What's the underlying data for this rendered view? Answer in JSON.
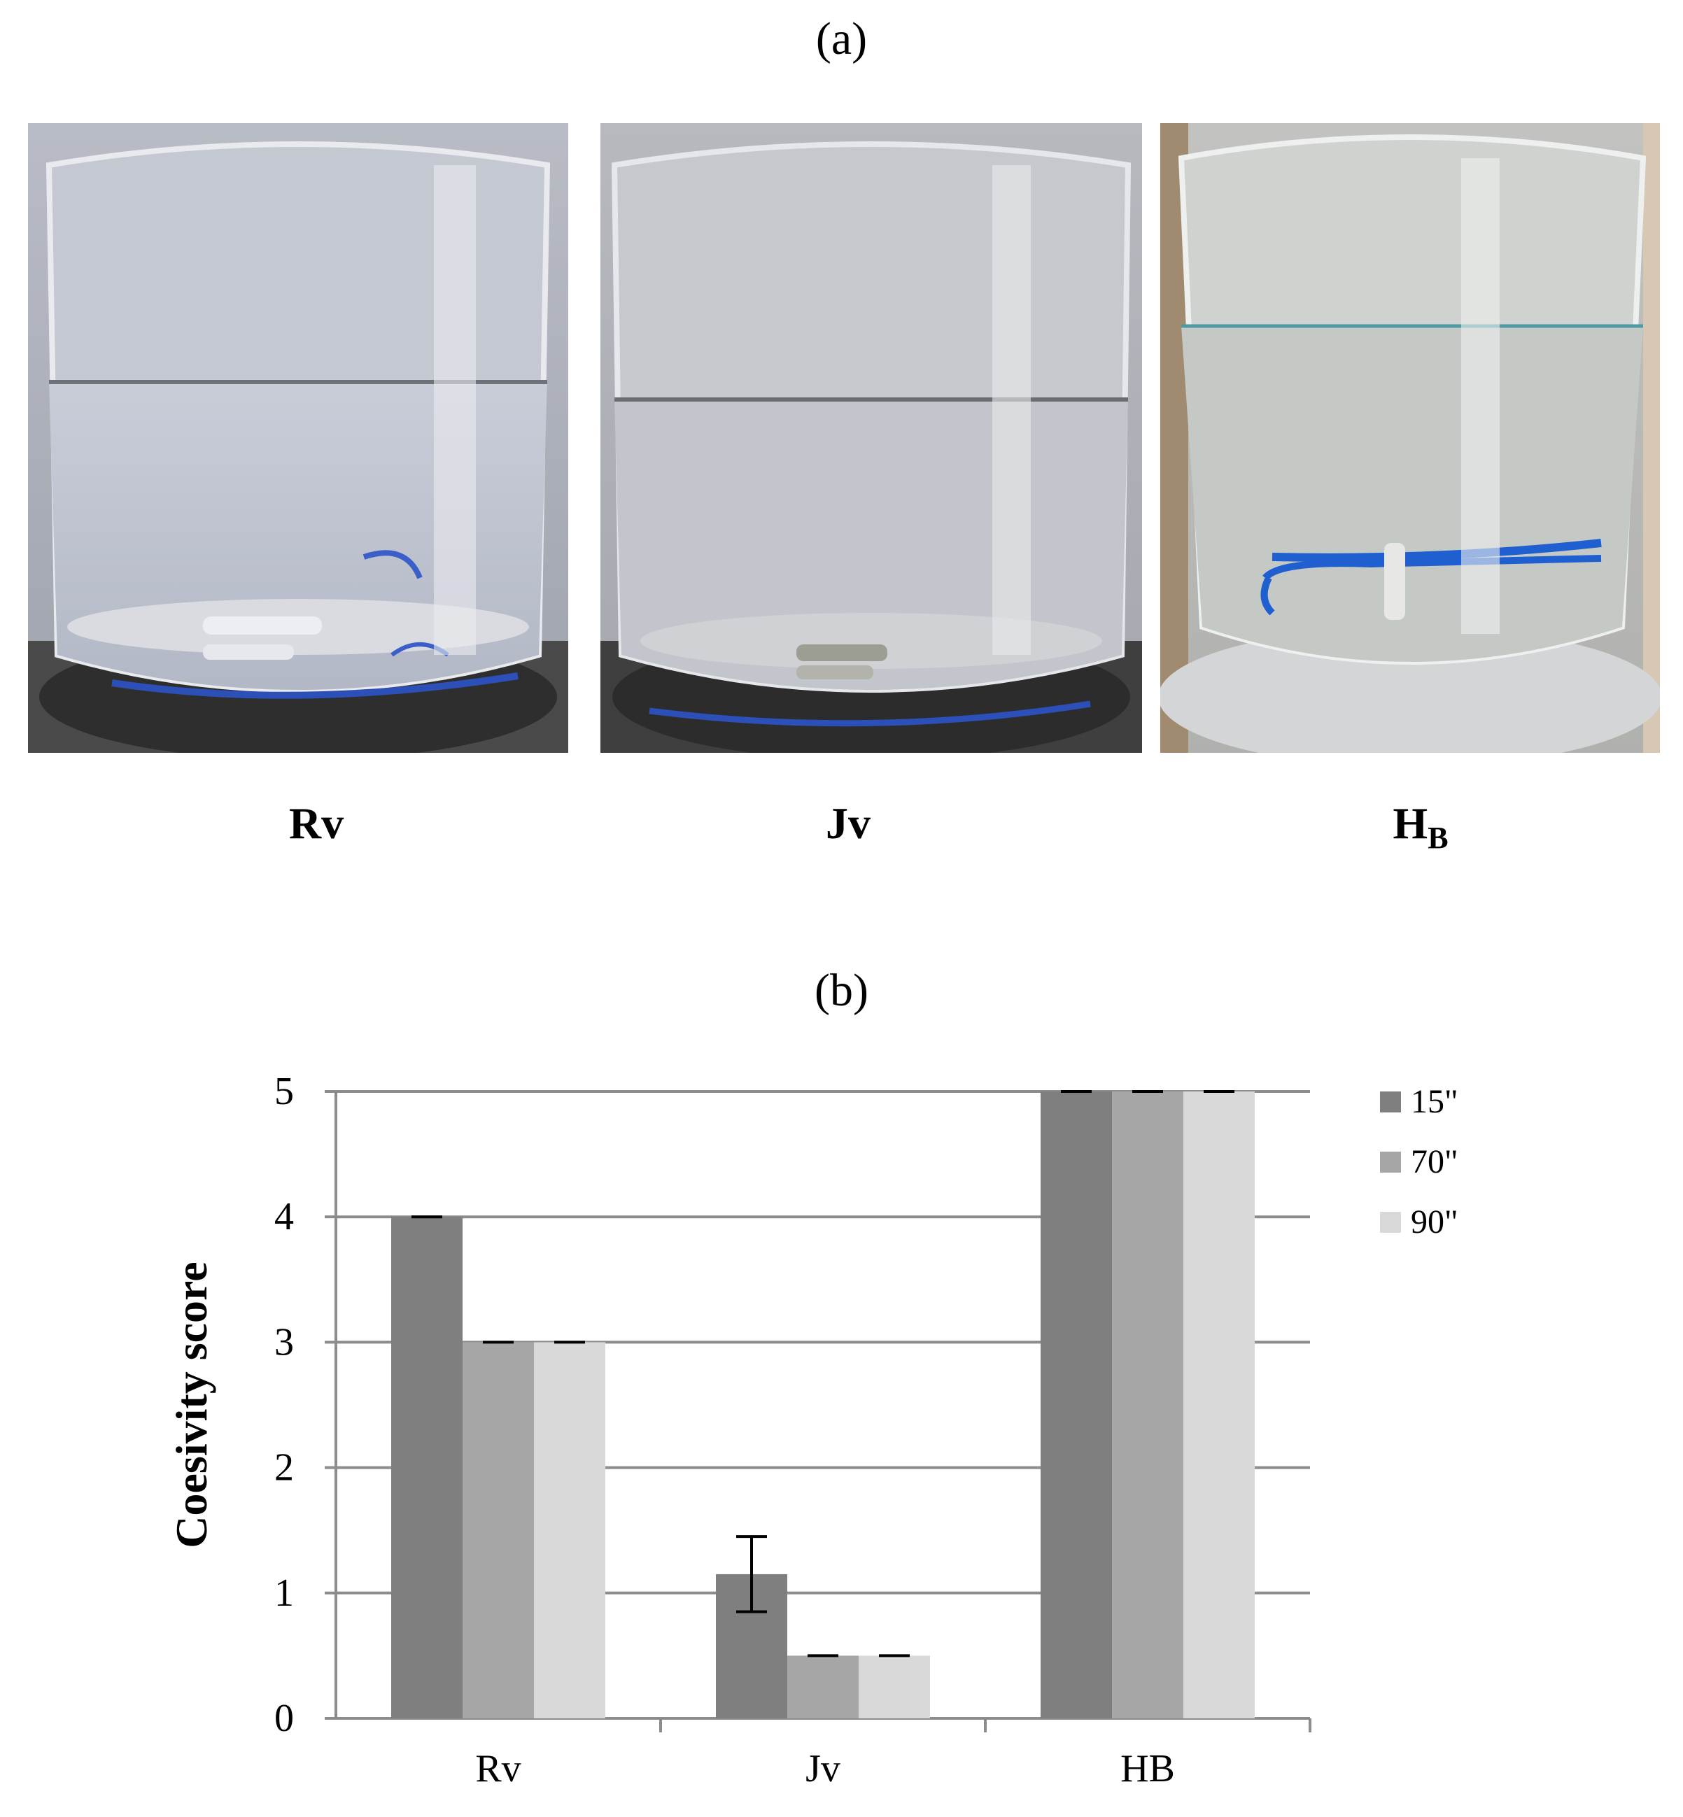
{
  "panels": {
    "a": "(a)",
    "b": "(b)"
  },
  "photos": [
    {
      "label_main": "Rv",
      "label_sub": ""
    },
    {
      "label_main": "Jv",
      "label_sub": ""
    },
    {
      "label_main": "H",
      "label_sub": "B"
    }
  ],
  "chart_data": {
    "type": "bar",
    "categories": [
      "Rv",
      "Jv",
      "HB"
    ],
    "series": [
      {
        "name": "15\"",
        "values": [
          4,
          1.15,
          5
        ],
        "errors": [
          0,
          0.3,
          0
        ],
        "color": "#7f7f7f"
      },
      {
        "name": "70\"",
        "values": [
          3,
          0.5,
          5
        ],
        "errors": [
          0,
          0,
          0
        ],
        "color": "#a6a6a6"
      },
      {
        "name": "90\"",
        "values": [
          3,
          0.5,
          5
        ],
        "errors": [
          0,
          0,
          0
        ],
        "color": "#d9d9d9"
      }
    ],
    "ylabel": "Coesivity score",
    "xlabel": "",
    "ylim": [
      0,
      5
    ],
    "yticks": [
      "0",
      "1",
      "2",
      "3",
      "4",
      "5"
    ],
    "grid": true,
    "legend_position": "right"
  }
}
